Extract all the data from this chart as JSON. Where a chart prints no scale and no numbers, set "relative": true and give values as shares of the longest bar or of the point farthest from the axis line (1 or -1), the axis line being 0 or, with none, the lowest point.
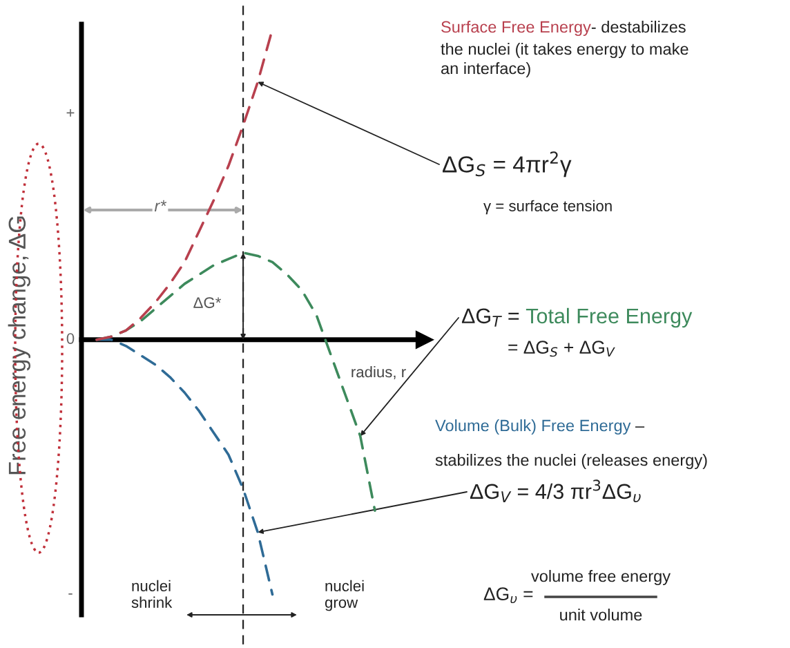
{
  "chart_data": {
    "type": "line",
    "relative": true,
    "line_style": "dashed",
    "ylabel": "Free energy change, ΔG",
    "xlabel": "radius, r",
    "categories": [
      null,
      null,
      null,
      null,
      null,
      null,
      null,
      null,
      null,
      null,
      null,
      null,
      null,
      null,
      null,
      null,
      null,
      null,
      null,
      null
    ],
    "series": [
      {
        "name": "Surface Free Energy",
        "color": "#b8404e",
        "values": [
          0,
          0.01,
          0.03,
          0.07,
          0.12,
          0.18,
          0.25,
          0.35,
          0.45,
          0.56,
          0.69,
          0.83,
          1,
          null,
          null,
          null,
          null,
          null,
          null,
          null
        ]
      },
      {
        "name": "Total Free Energy",
        "color": "#3d8a5c",
        "values": [
          0,
          0.01,
          0.03,
          0.06,
          0.1,
          0.14,
          0.18,
          0.21,
          0.24,
          0.26,
          0.28,
          0.27,
          0.25,
          0.21,
          0.16,
          0.08,
          -0.05,
          -0.18,
          -0.31,
          -0.55
        ]
      },
      {
        "name": "Volume (Bulk) Free Energy",
        "color": "#2f6b96",
        "values": [
          0,
          0,
          -0.02,
          -0.05,
          -0.08,
          -0.12,
          -0.17,
          -0.23,
          -0.3,
          -0.37,
          -0.48,
          -0.62,
          -0.82,
          null,
          null,
          null,
          null,
          null,
          null,
          null
        ]
      }
    ],
    "annotations": [
      "+",
      "0",
      "-",
      "r*",
      "ΔG*",
      "nuclei\nshrink",
      "nuclei\ngrow",
      "- destabilizes",
      "the nuclei (it takes energy to make\nan interface)",
      "ΔG$_{S}$ = 4πr$^{2}$γ",
      "γ = surface tension",
      "ΔG$_{T}$ = ",
      "= ΔG$_{S}$ + ΔG$_{V}$",
      " –",
      "stabilizes the nuclei (releases energy)",
      "ΔG$_{V}$ = 4/3 πr$^{3}$ΔG$_{υ}$",
      "ΔG$_{υ}$ =",
      "volume free energy",
      "unit volume"
    ]
  }
}
